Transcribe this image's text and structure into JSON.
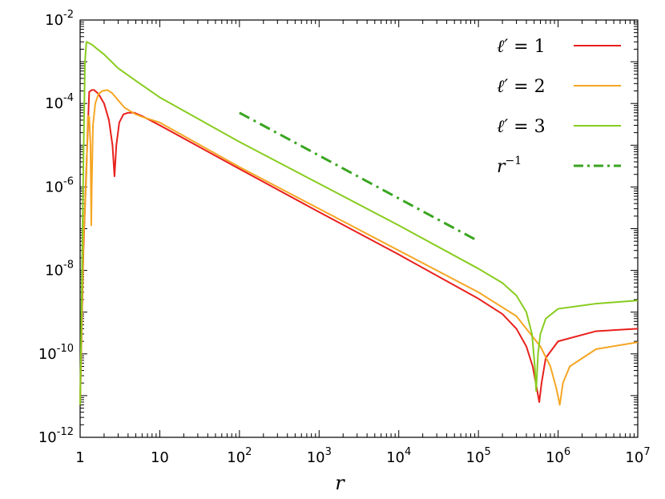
{
  "chart_data": {
    "type": "line",
    "title": "",
    "xlabel": "r",
    "ylabel": "",
    "xscale": "log",
    "yscale": "log",
    "xlim": [
      1,
      10000000
    ],
    "ylim": [
      1e-12,
      0.01
    ],
    "grid": false,
    "legend_position": "top-right",
    "x_tick_labels": [
      {
        "base": "1",
        "exp": ""
      },
      {
        "base": "10",
        "exp": ""
      },
      {
        "base": "10",
        "exp": "2"
      },
      {
        "base": "10",
        "exp": "3"
      },
      {
        "base": "10",
        "exp": "4"
      },
      {
        "base": "10",
        "exp": "5"
      },
      {
        "base": "10",
        "exp": "6"
      },
      {
        "base": "10",
        "exp": "7"
      }
    ],
    "y_tick_labels": [
      {
        "base": "10",
        "exp": "-12"
      },
      {
        "base": "10",
        "exp": "-10"
      },
      {
        "base": "10",
        "exp": "-8"
      },
      {
        "base": "10",
        "exp": "-6"
      },
      {
        "base": "10",
        "exp": "-4"
      },
      {
        "base": "10",
        "exp": "-2"
      }
    ],
    "series": [
      {
        "name": "ℓ′ = 1",
        "legend_var": "ℓ′",
        "legend_value": "1",
        "color": "#e8201c",
        "dash": "solid",
        "x": [
          1.0,
          1.1,
          1.2,
          1.3,
          1.4,
          1.5,
          1.7,
          2.0,
          2.3,
          2.55,
          2.7,
          2.85,
          3.1,
          3.5,
          4.0,
          4.8,
          6.0,
          10,
          100,
          1000,
          10000,
          100000,
          200000,
          300000,
          400000,
          480000,
          540000,
          580000,
          620000,
          700000,
          1000000,
          3000000,
          10000000
        ],
        "y": [
          6e-12,
          3e-08,
          3e-06,
          0.00019,
          0.00021,
          0.00021,
          0.00017,
          0.0001,
          4e-05,
          1e-05,
          1.8e-06,
          1e-05,
          3.5e-05,
          5.5e-05,
          6e-05,
          6e-05,
          5e-05,
          3e-05,
          2.7e-06,
          2.5e-07,
          2.4e-08,
          2.1e-09,
          9e-10,
          4e-10,
          1.5e-10,
          5e-11,
          1.5e-11,
          7e-12,
          2e-11,
          8e-11,
          2e-10,
          3.5e-10,
          4e-10
        ]
      },
      {
        "name": "ℓ′ = 2",
        "legend_var": "ℓ′",
        "legend_value": "2",
        "color": "#f5a623",
        "dash": "solid",
        "x": [
          1.0,
          1.1,
          1.2,
          1.25,
          1.3,
          1.35,
          1.38,
          1.4,
          1.45,
          1.55,
          1.7,
          1.9,
          2.2,
          2.5,
          3.0,
          3.6,
          4.3,
          5.0,
          6.0,
          10,
          100,
          1000,
          10000,
          100000,
          300000,
          600000,
          800000,
          950000,
          1050000,
          1150000,
          1400000,
          3000000,
          10000000
        ],
        "y": [
          6e-12,
          5e-08,
          2e-06,
          5e-05,
          4.8e-05,
          1e-05,
          1.2e-07,
          1e-06,
          3e-05,
          0.0001,
          0.00017,
          0.0002,
          0.00021,
          0.00018,
          0.00012,
          8e-05,
          6.5e-05,
          5.5e-05,
          4.8e-05,
          3.5e-05,
          3e-06,
          3e-07,
          3e-08,
          3e-09,
          8e-10,
          1.5e-10,
          5e-11,
          1.5e-11,
          6e-12,
          2e-11,
          5e-11,
          1.3e-10,
          1.9e-10
        ]
      },
      {
        "name": "ℓ′ = 3",
        "legend_var": "ℓ′",
        "legend_value": "3",
        "color": "#88cc1e",
        "dash": "solid",
        "x": [
          1.0,
          1.05,
          1.1,
          1.15,
          1.2,
          1.4,
          1.6,
          2.0,
          3.0,
          5.0,
          10,
          100,
          1000,
          10000,
          100000,
          200000,
          300000,
          400000,
          470000,
          510000,
          530000,
          560000,
          600000,
          700000,
          1000000,
          3000000,
          10000000
        ],
        "y": [
          6e-12,
          3e-09,
          4e-06,
          0.001,
          0.003,
          0.0026,
          0.0021,
          0.0015,
          0.0007,
          0.00035,
          0.00014,
          1.2e-05,
          1.2e-06,
          1.2e-07,
          1.1e-08,
          5e-09,
          2.5e-09,
          1e-09,
          3e-10,
          5e-11,
          1.3e-11,
          1e-10,
          3e-10,
          7e-10,
          1.2e-09,
          1.6e-09,
          1.9e-09
        ]
      },
      {
        "name": "r⁻¹",
        "legend_var": "r",
        "legend_value": "",
        "legend_sup": "−1",
        "color": "#3aa520",
        "dash": "dashdot",
        "x": [
          100,
          100000
        ],
        "y": [
          6e-05,
          5e-08
        ]
      }
    ]
  }
}
